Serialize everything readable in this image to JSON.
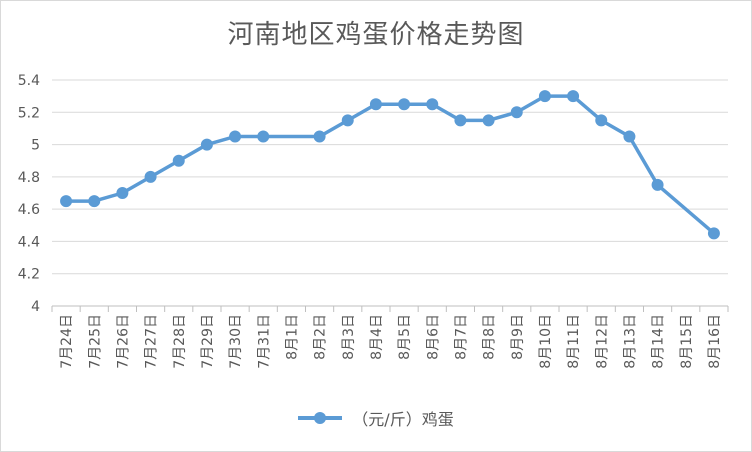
{
  "chart_data": {
    "type": "line",
    "title": "河南地区鸡蛋价格走势图",
    "categories": [
      "7月24日",
      "7月25日",
      "7月26日",
      "7月27日",
      "7月28日",
      "7月29日",
      "7月30日",
      "7月31日",
      "8月1日",
      "8月2日",
      "8月3日",
      "8月4日",
      "8月5日",
      "8月6日",
      "8月7日",
      "8月8日",
      "8月9日",
      "8月10日",
      "8月11日",
      "8月12日",
      "8月13日",
      "8月14日",
      "8月15日",
      "8月16日"
    ],
    "series": [
      {
        "name": "（元/斤）鸡蛋",
        "values": [
          4.65,
          4.65,
          4.7,
          4.8,
          4.9,
          5.0,
          5.05,
          5.05,
          null,
          5.05,
          5.15,
          5.25,
          5.25,
          5.25,
          5.15,
          5.15,
          5.2,
          5.3,
          5.3,
          5.15,
          5.05,
          4.75,
          null,
          4.45
        ],
        "color": "#5b9bd5"
      }
    ],
    "ylim": [
      4,
      5.4
    ],
    "yticks": [
      "4",
      "4.2",
      "4.4",
      "4.6",
      "4.8",
      "5",
      "5.2",
      "5.4"
    ],
    "grid": true,
    "legend_position": "bottom"
  }
}
